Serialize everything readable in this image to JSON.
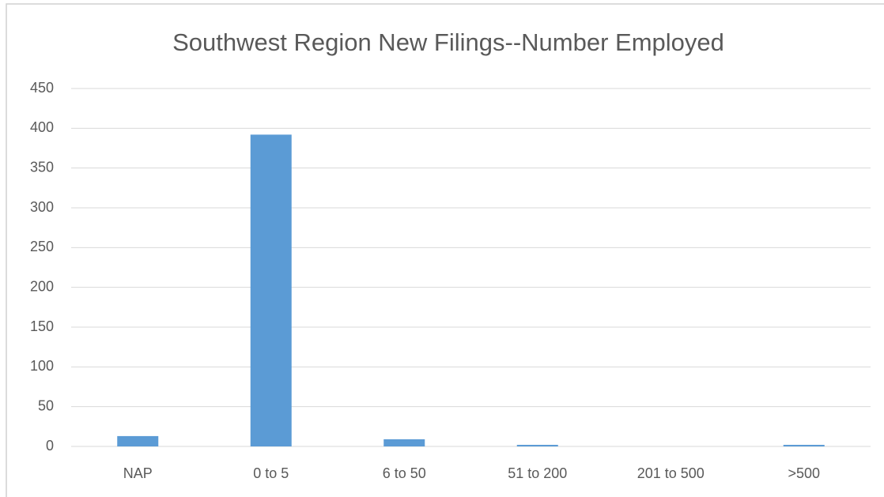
{
  "chart_data": {
    "type": "bar",
    "title": "Southwest Region New Filings--Number Employed",
    "categories": [
      "NAP",
      "0 to 5",
      "6 to 50",
      "51 to 200",
      "201 to 500",
      ">500"
    ],
    "values": [
      13,
      392,
      9,
      2,
      0,
      2
    ],
    "color": "#5b9bd5",
    "ylim": [
      0,
      450
    ],
    "yticks": [
      0,
      50,
      100,
      150,
      200,
      250,
      300,
      350,
      400,
      450
    ],
    "grid": true
  }
}
